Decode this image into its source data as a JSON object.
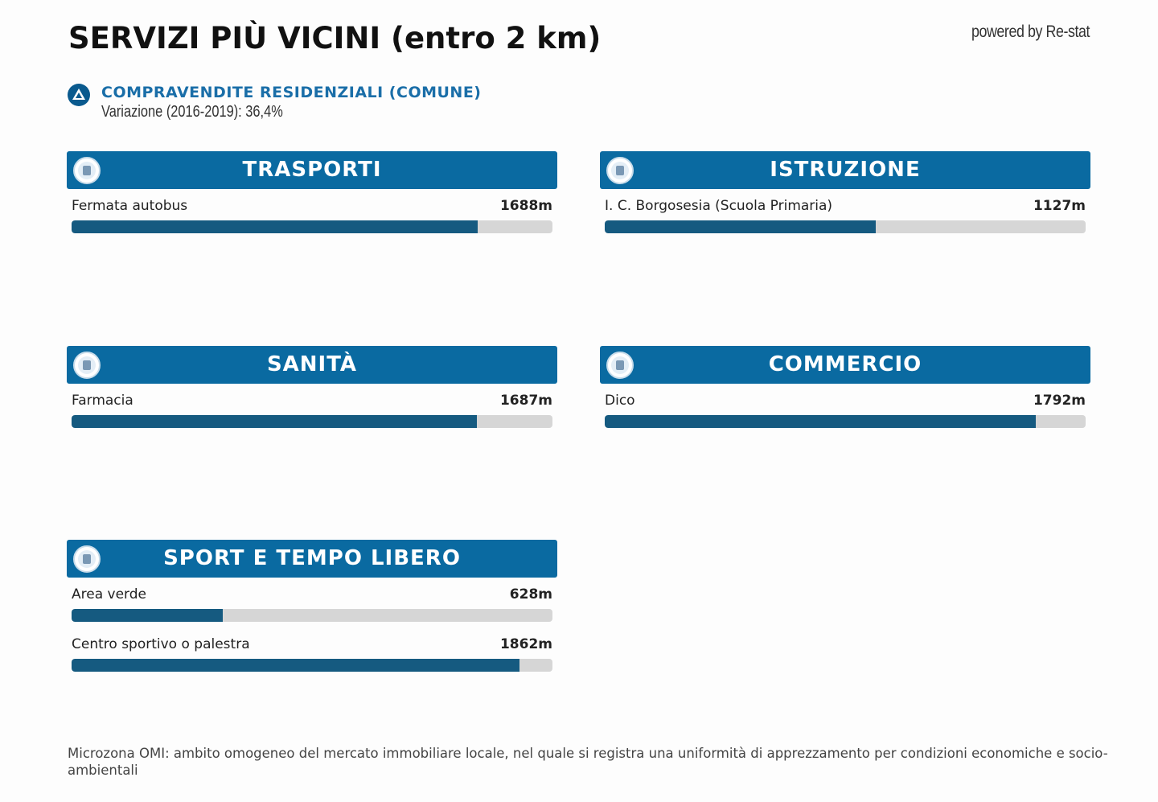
{
  "header": {
    "title": "SERVIZI PIÙ VICINI (entro 2 km)",
    "powered_by": "powered by Re-stat"
  },
  "summary": {
    "title": "COMPRAVENDITE RESIDENZIALI (COMUNE)",
    "text": "Variazione (2016-2019): 36,4%"
  },
  "bar_range": [
    0,
    2000
  ],
  "sections": [
    {
      "title": "TRASPORTI",
      "items": [
        {
          "name": "Fermata autobus",
          "value": 1688,
          "value_label": "1688m"
        }
      ]
    },
    {
      "title": "ISTRUZIONE",
      "items": [
        {
          "name": "I. C. Borgosesia (Scuola Primaria)",
          "value": 1127,
          "value_label": "1127m"
        }
      ]
    },
    {
      "title": "SANITÀ",
      "items": [
        {
          "name": "Farmacia",
          "value": 1687,
          "value_label": "1687m"
        }
      ]
    },
    {
      "title": "COMMERCIO",
      "items": [
        {
          "name": "Dico",
          "value": 1792,
          "value_label": "1792m"
        }
      ]
    },
    {
      "title": "SPORT E TEMPO LIBERO",
      "items": [
        {
          "name": "Area verde",
          "value": 628,
          "value_label": "628m"
        },
        {
          "name": "Centro sportivo o palestra",
          "value": 1862,
          "value_label": "1862m"
        }
      ]
    }
  ],
  "footnote": "Microzona OMI: ambito omogeneo del mercato immobiliare locale, nel quale si registra una uniformità di apprezzamento per condizioni economiche e socio-ambientali"
}
